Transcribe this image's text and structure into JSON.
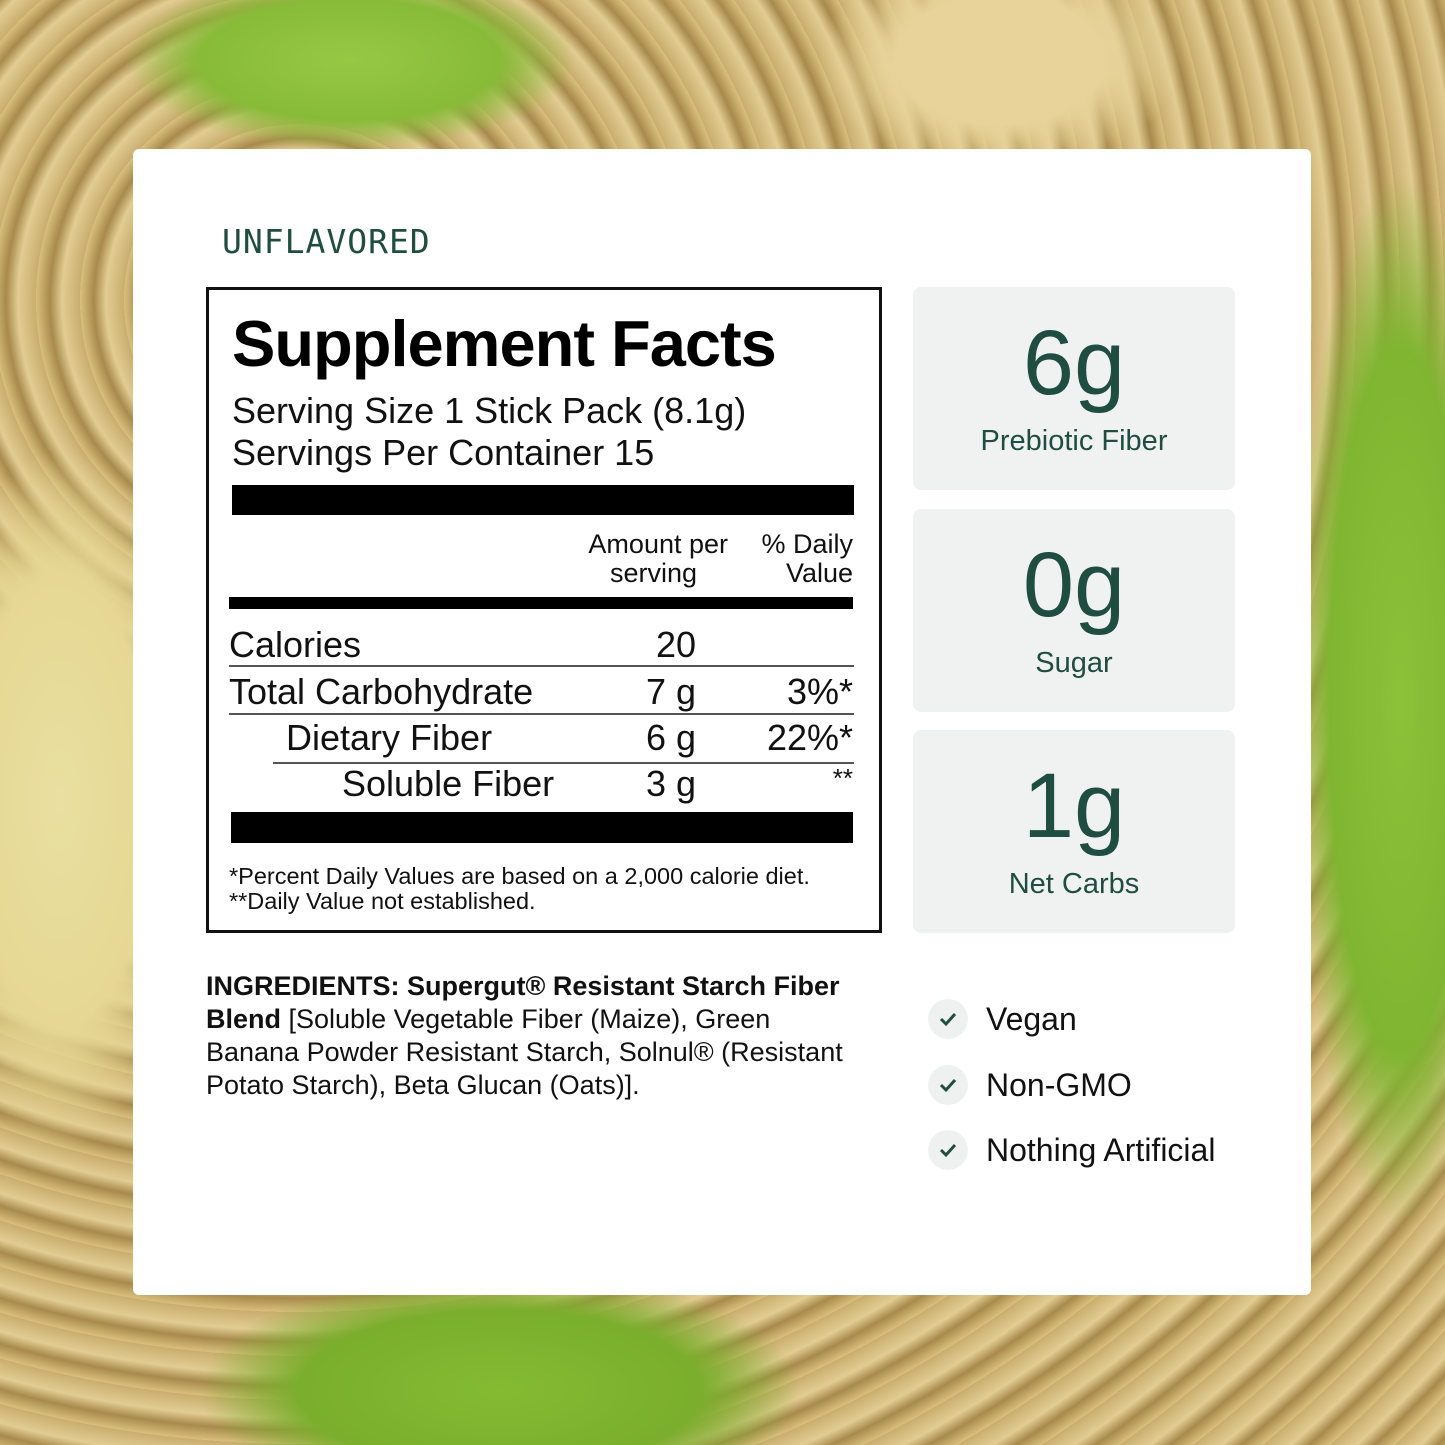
{
  "flavor": "UNFLAVORED",
  "facts": {
    "title": "Supplement Facts",
    "serving_size": "Serving Size 1 Stick Pack (8.1g)",
    "servings_per_container": "Servings Per Container 15",
    "col_amount": [
      "Amount per",
      "serving"
    ],
    "col_dv": [
      "% Daily",
      "Value"
    ],
    "rows": [
      {
        "name": "Calories",
        "amount": "20",
        "dv": ""
      },
      {
        "name": "Total Carbohydrate",
        "amount": "7 g",
        "dv": "3%*"
      },
      {
        "name": "Dietary Fiber",
        "amount": "6 g",
        "dv": "22%*"
      },
      {
        "name": "Soluble Fiber",
        "amount": "3 g",
        "dv": "**"
      }
    ],
    "footnotes": [
      "*Percent Daily Values are based on a 2,000 calorie diet.",
      "**Daily Value not established."
    ]
  },
  "stats": [
    {
      "value": "6g",
      "label": "Prebiotic Fiber"
    },
    {
      "value": "0g",
      "label": "Sugar"
    },
    {
      "value": "1g",
      "label": "Net Carbs"
    }
  ],
  "ingredients": {
    "bold": "INGREDIENTS: Supergut® Resistant Starch Fiber Blend",
    "text": " [Soluble Vegetable Fiber (Maize), Green Banana Powder Resistant Starch, Solnul® (Resistant Potato Starch), Beta Glucan (Oats)]."
  },
  "claims": [
    {
      "icon": "check-icon",
      "label": "Vegan"
    },
    {
      "icon": "check-icon",
      "label": "Non-GMO"
    },
    {
      "icon": "check-icon",
      "label": "Nothing Artificial"
    }
  ],
  "colors": {
    "accent": "#1f4d3f",
    "stat_bg": "#f0f2f1"
  }
}
